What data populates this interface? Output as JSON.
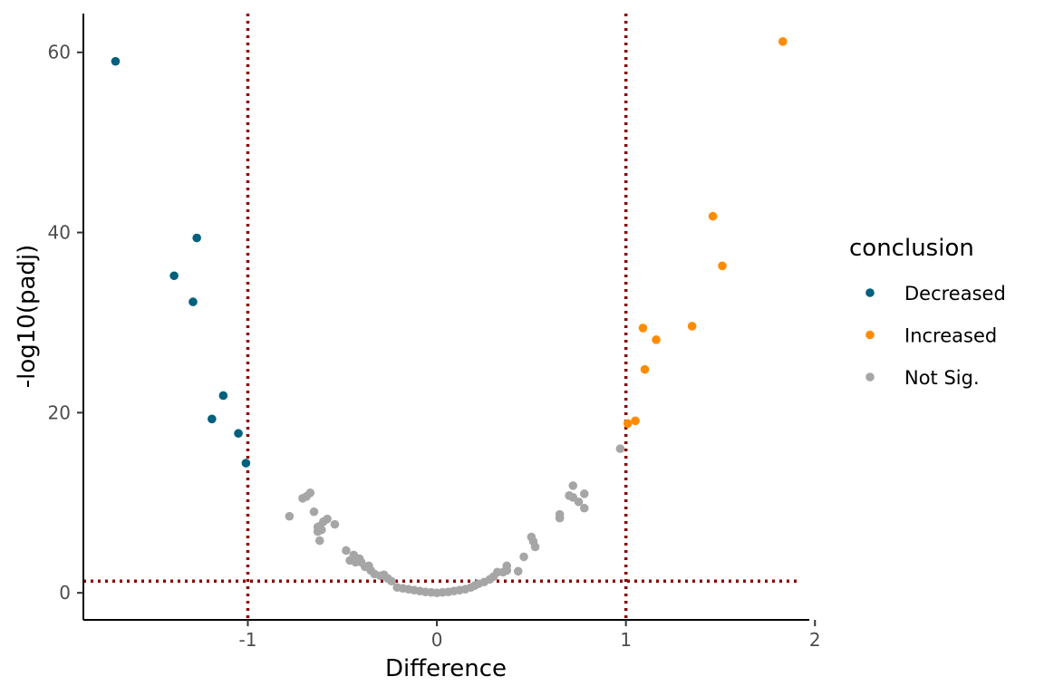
{
  "chart_data": {
    "type": "scatter",
    "title": "",
    "xlabel": "Difference",
    "ylabel": "-log10(padj)",
    "xlim": [
      -1.87,
      1.97
    ],
    "ylim": [
      -3.0,
      64.3
    ],
    "x_ticks": [
      -1,
      0,
      1,
      2
    ],
    "x_tick_labels": [
      "-1",
      "0",
      "1",
      "2"
    ],
    "y_ticks": [
      0,
      20,
      40,
      60
    ],
    "y_tick_labels": [
      "0",
      "20",
      "40",
      "60"
    ],
    "grid": false,
    "legend": {
      "title": "conclusion",
      "placement": "right"
    },
    "threshold_lines": {
      "vertical_x": [
        -1,
        1
      ],
      "horizontal_y": [
        1.3
      ],
      "color": "#8b0000",
      "style": "dotted"
    },
    "series": [
      {
        "name": "Decreased",
        "color": "#00607e",
        "points": [
          [
            -1.7,
            59.0
          ],
          [
            -1.27,
            39.4
          ],
          [
            -1.39,
            35.2
          ],
          [
            -1.29,
            32.3
          ],
          [
            -1.13,
            21.9
          ],
          [
            -1.19,
            19.3
          ],
          [
            -1.05,
            17.7
          ],
          [
            -1.01,
            14.4
          ]
        ]
      },
      {
        "name": "Increased",
        "color": "#ff8c00",
        "points": [
          [
            1.83,
            61.2
          ],
          [
            1.46,
            41.8
          ],
          [
            1.51,
            36.3
          ],
          [
            1.35,
            29.6
          ],
          [
            1.09,
            29.4
          ],
          [
            1.16,
            28.1
          ],
          [
            1.1,
            24.8
          ],
          [
            1.05,
            19.1
          ],
          [
            1.01,
            18.8
          ]
        ]
      },
      {
        "name": "Not Sig.",
        "color": "#a6a6a6",
        "points": [
          [
            0.97,
            16.0
          ],
          [
            0.72,
            11.9
          ],
          [
            0.7,
            10.8
          ],
          [
            0.72,
            10.6
          ],
          [
            0.78,
            11.0
          ],
          [
            0.75,
            10.1
          ],
          [
            0.78,
            9.4
          ],
          [
            0.65,
            8.7
          ],
          [
            0.65,
            8.3
          ],
          [
            0.5,
            6.2
          ],
          [
            0.51,
            5.7
          ],
          [
            0.52,
            5.1
          ],
          [
            0.46,
            4.0
          ],
          [
            0.43,
            2.4
          ],
          [
            0.37,
            3.0
          ],
          [
            0.37,
            2.5
          ],
          [
            0.35,
            2.3
          ],
          [
            0.32,
            2.3
          ],
          [
            0.3,
            1.8
          ],
          [
            0.28,
            1.5
          ],
          [
            0.25,
            1.2
          ],
          [
            0.22,
            1.0
          ],
          [
            0.2,
            0.8
          ],
          [
            0.18,
            0.6
          ],
          [
            0.15,
            0.4
          ],
          [
            0.12,
            0.3
          ],
          [
            0.09,
            0.2
          ],
          [
            0.06,
            0.1
          ],
          [
            0.03,
            0.05
          ],
          [
            0.0,
            0.0
          ],
          [
            -0.03,
            0.05
          ],
          [
            -0.06,
            0.1
          ],
          [
            -0.09,
            0.2
          ],
          [
            -0.12,
            0.3
          ],
          [
            -0.15,
            0.4
          ],
          [
            -0.18,
            0.5
          ],
          [
            -0.21,
            0.6
          ],
          [
            -0.24,
            1.3
          ],
          [
            -0.26,
            1.6
          ],
          [
            -0.28,
            2.0
          ],
          [
            -0.3,
            1.9
          ],
          [
            -0.33,
            2.1
          ],
          [
            -0.35,
            2.5
          ],
          [
            -0.36,
            3.0
          ],
          [
            -0.38,
            2.9
          ],
          [
            -0.4,
            3.4
          ],
          [
            -0.41,
            3.8
          ],
          [
            -0.43,
            3.4
          ],
          [
            -0.44,
            4.2
          ],
          [
            -0.46,
            3.6
          ],
          [
            -0.48,
            4.7
          ],
          [
            -0.54,
            7.6
          ],
          [
            -0.58,
            8.2
          ],
          [
            -0.6,
            7.9
          ],
          [
            -0.61,
            7.0
          ],
          [
            -0.62,
            7.4
          ],
          [
            -0.63,
            7.3
          ],
          [
            -0.63,
            6.8
          ],
          [
            -0.62,
            5.8
          ],
          [
            -0.65,
            9.0
          ],
          [
            -0.67,
            11.1
          ],
          [
            -0.69,
            10.7
          ],
          [
            -0.71,
            10.5
          ],
          [
            -0.78,
            8.5
          ]
        ]
      }
    ]
  }
}
